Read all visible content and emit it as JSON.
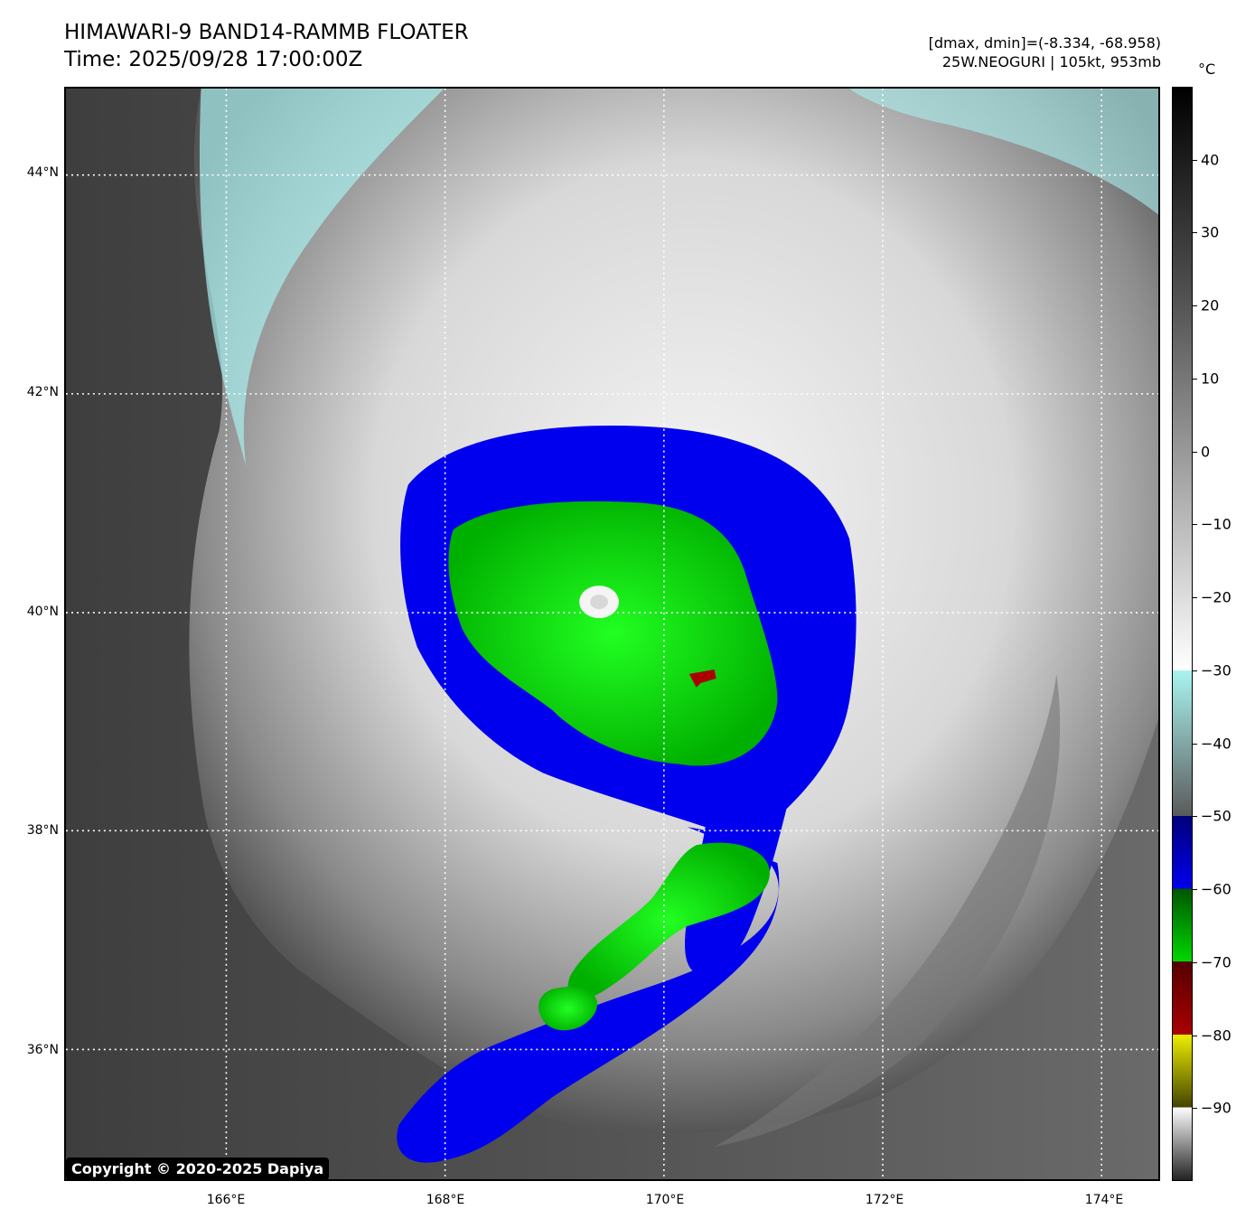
{
  "header": {
    "title_line1": "HIMAWARI-9 BAND14-RAMMB FLOATER",
    "title_line2": "Time: 2025/09/28 17:00:00Z",
    "meta_line1": "[dmax, dmin]=(-8.334, -68.958)",
    "meta_line2": "25W.NEOGURI | 105kt, 953mb"
  },
  "map": {
    "lat_labels": [
      "44°N",
      "42°N",
      "40°N",
      "38°N",
      "36°N"
    ],
    "lon_labels": [
      "166°E",
      "168°E",
      "170°E",
      "172°E",
      "174°E"
    ],
    "storm_name": "25W.NEOGURI",
    "intensity_kt": 105,
    "pressure_mb": 953
  },
  "colorbar": {
    "unit": "°C",
    "ticks": [
      "40",
      "30",
      "20",
      "10",
      "0",
      "−10",
      "−20",
      "−30",
      "−40",
      "−50",
      "−60",
      "−70",
      "−80",
      "−90"
    ],
    "colors": {
      "warm": "#4a4a4a",
      "cold_white": "#f2f2f2",
      "cyan": "#a8f5f0",
      "blue": "#0000ee",
      "green": "#00d800",
      "red": "#aa0000",
      "yellow": "#eeee00"
    }
  },
  "copyright": "Copyright © 2020-2025 Dapiya"
}
